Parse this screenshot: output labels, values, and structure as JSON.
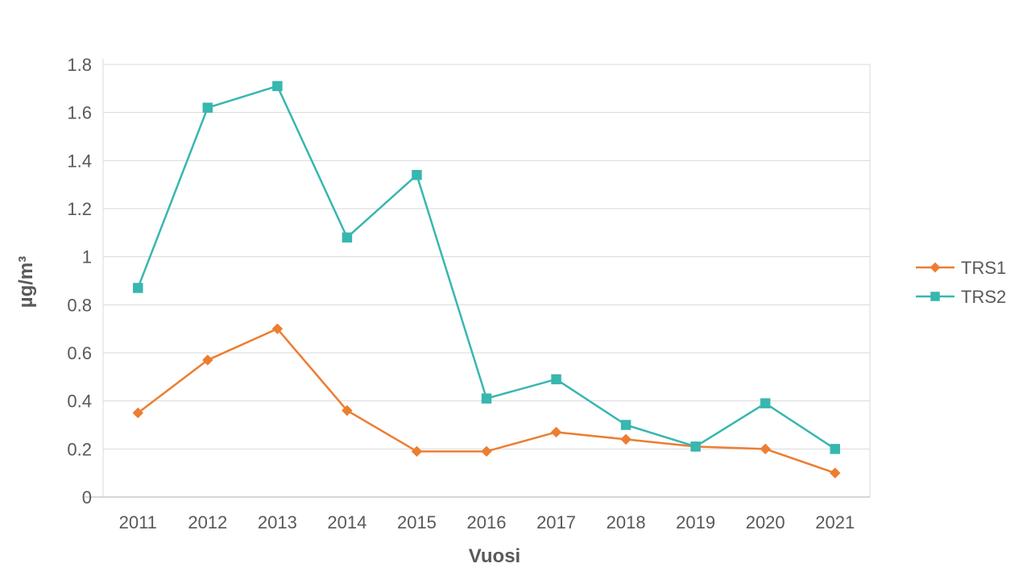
{
  "chart_data": {
    "type": "line",
    "title": "",
    "xlabel": "Vuosi",
    "ylabel": "µg/m³",
    "categories": [
      "2011",
      "2012",
      "2013",
      "2014",
      "2015",
      "2016",
      "2017",
      "2018",
      "2019",
      "2020",
      "2021"
    ],
    "series": [
      {
        "name": "TRS1",
        "color": "#ED7D31",
        "marker": "diamond",
        "values": [
          0.35,
          0.57,
          0.7,
          0.36,
          0.19,
          0.19,
          0.27,
          0.24,
          0.21,
          0.2,
          0.1
        ]
      },
      {
        "name": "TRS2",
        "color": "#38B6B0",
        "marker": "square",
        "values": [
          0.87,
          1.62,
          1.71,
          1.08,
          1.34,
          0.41,
          0.49,
          0.3,
          0.21,
          0.39,
          0.2
        ]
      }
    ],
    "ylim": [
      0,
      1.8
    ],
    "yticks": [
      0,
      0.2,
      0.4,
      0.6,
      0.8,
      1,
      1.2,
      1.4,
      1.6,
      1.8
    ],
    "ytick_labels": [
      "0",
      "0.2",
      "0.4",
      "0.6",
      "0.8",
      "1",
      "1.2",
      "1.4",
      "1.6",
      "1.8"
    ],
    "grid": "horizontal",
    "legend_position": "right",
    "legend_labels": [
      "TRS1",
      "TRS2"
    ],
    "colors": {
      "tick_text": "#595959",
      "axis_title_text": "#595959",
      "gridline": "#D9D9D9",
      "axis_line": "#BFBFBF",
      "background": "#FFFFFF"
    }
  }
}
